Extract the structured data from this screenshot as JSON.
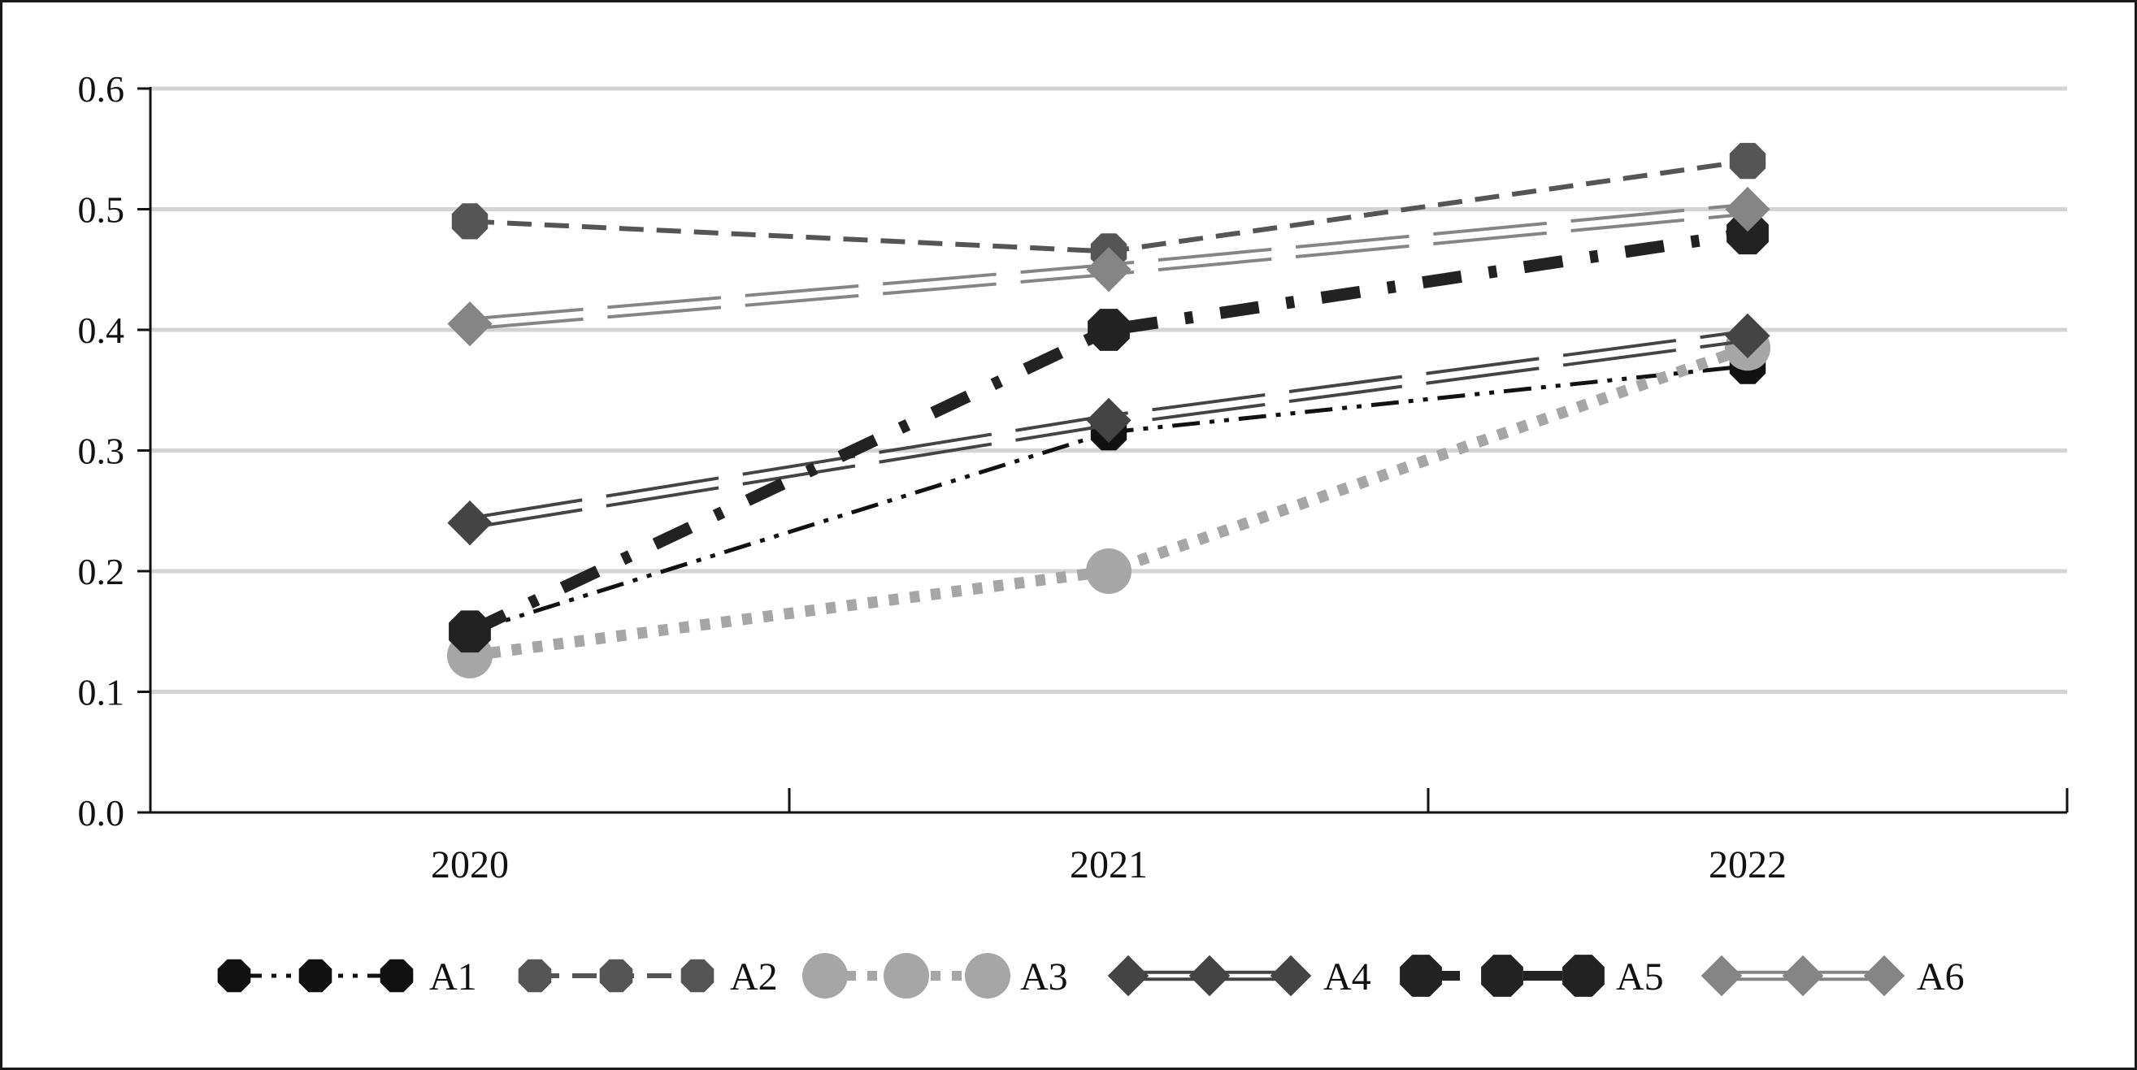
{
  "chart_data": {
    "type": "line",
    "title": "",
    "xlabel": "",
    "ylabel": "",
    "categories": [
      "2020",
      "2021",
      "2022"
    ],
    "ylim": [
      0,
      0.6
    ],
    "yticks": [
      "0.0",
      "0.1",
      "0.2",
      "0.3",
      "0.4",
      "0.5",
      "0.6"
    ],
    "grid": true,
    "legend_position": "bottom",
    "series": [
      {
        "name": "A1",
        "values": [
          0.15,
          0.315,
          0.37
        ],
        "color": "#111111",
        "dash": "dashdotdot",
        "marker": "octagon"
      },
      {
        "name": "A2",
        "values": [
          0.49,
          0.465,
          0.54
        ],
        "color": "#555555",
        "dash": "dash",
        "marker": "octagon"
      },
      {
        "name": "A3",
        "values": [
          0.13,
          0.2,
          0.385
        ],
        "color": "#a6a6a6",
        "dash": "dot",
        "marker": "circle"
      },
      {
        "name": "A4",
        "values": [
          0.24,
          0.325,
          0.395
        ],
        "color": "#444444",
        "dash": "longdash-double",
        "marker": "diamond"
      },
      {
        "name": "A5",
        "values": [
          0.15,
          0.4,
          0.48
        ],
        "color": "#222222",
        "dash": "dashdot-thick",
        "marker": "octagon"
      },
      {
        "name": "A6",
        "values": [
          0.405,
          0.45,
          0.5
        ],
        "color": "#858585",
        "dash": "longdash-double",
        "marker": "diamond"
      }
    ]
  }
}
